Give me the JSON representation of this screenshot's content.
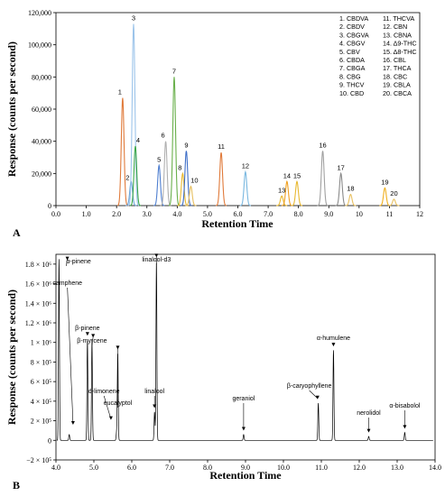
{
  "chart_data": [
    {
      "type": "line",
      "panel_label": "A",
      "xlabel": "Retention Time",
      "ylabel": "Response (counts per second)",
      "xlim": [
        0,
        12
      ],
      "ylim": [
        0,
        120000
      ],
      "x_ticks": [
        "0.0",
        "1.0",
        "2.0",
        "3.0",
        "4.0",
        "5.0",
        "6.0",
        "7.0",
        "8.0",
        "9.0",
        "10",
        "11",
        "12"
      ],
      "y_ticks": [
        "0",
        "20,000",
        "40,000",
        "60,000",
        "80,000",
        "100,000",
        "120,000"
      ],
      "y_tick_values": [
        0,
        20000,
        40000,
        60000,
        80000,
        100000,
        120000
      ],
      "legend": [
        "1.  CBDVA",
        "2.  CBDV",
        "3.  CBGVA",
        "4.  CBGV",
        "5.  CBV",
        "6.  CBDA",
        "7.  CBGA",
        "8.  CBG",
        "9.  THCV",
        "10. CBD",
        "11.  THCVA",
        "12.  CBN",
        "13.  CBNA",
        "14.  Δ9-THC",
        "15.  Δ8-THC",
        "16.  CBL",
        "17.  THCA",
        "18.  CBC",
        "19.  CBLA",
        "20.  CBCA"
      ],
      "peaks": [
        {
          "label": "1",
          "x": 2.2,
          "y": 67000,
          "color": "#e07a3a"
        },
        {
          "label": "2",
          "x": 2.48,
          "y": 15000,
          "color": "#6aa3d8"
        },
        {
          "label": "3",
          "x": 2.56,
          "y": 113000,
          "color": "#9cc4ea"
        },
        {
          "label": "4",
          "x": 2.62,
          "y": 37000,
          "color": "#3ea84a"
        },
        {
          "label": "5",
          "x": 3.4,
          "y": 25000,
          "color": "#4f7fd0"
        },
        {
          "label": "6",
          "x": 3.62,
          "y": 40000,
          "color": "#b0b0b0"
        },
        {
          "label": "7",
          "x": 3.9,
          "y": 80000,
          "color": "#6ab04c"
        },
        {
          "label": "8",
          "x": 4.18,
          "y": 20000,
          "color": "#e8b830"
        },
        {
          "label": "9",
          "x": 4.3,
          "y": 34000,
          "color": "#3f6fc8"
        },
        {
          "label": "10",
          "x": 4.45,
          "y": 12000,
          "color": "#e8c060"
        },
        {
          "label": "11",
          "x": 5.45,
          "y": 33000,
          "color": "#e07a3a"
        },
        {
          "label": "12",
          "x": 6.25,
          "y": 21000,
          "color": "#7ab8e0"
        },
        {
          "label": "13",
          "x": 7.45,
          "y": 6000,
          "color": "#e8b830"
        },
        {
          "label": "14",
          "x": 7.62,
          "y": 15000,
          "color": "#f0a020"
        },
        {
          "label": "15",
          "x": 7.95,
          "y": 15000,
          "color": "#e8b830"
        },
        {
          "label": "16",
          "x": 8.8,
          "y": 34000,
          "color": "#a0a0a0"
        },
        {
          "label": "17",
          "x": 9.4,
          "y": 20000,
          "color": "#8a8a8a"
        },
        {
          "label": "18",
          "x": 9.72,
          "y": 7000,
          "color": "#e8c060"
        },
        {
          "label": "19",
          "x": 10.85,
          "y": 11000,
          "color": "#f0b020"
        },
        {
          "label": "20",
          "x": 11.15,
          "y": 4000,
          "color": "#e8c060"
        }
      ]
    },
    {
      "type": "line",
      "panel_label": "B",
      "xlabel": "Retention Time",
      "ylabel": "Response (counts per second)",
      "xlim": [
        4.0,
        14.0
      ],
      "ylim": [
        -200000,
        1900000
      ],
      "x_ticks": [
        "4.0",
        "5.0",
        "6.0",
        "7.0",
        "8.0",
        "9.0",
        "10.0",
        "11.0",
        "12.0",
        "13.0",
        "14.0"
      ],
      "y_ticks": [
        "−2 × 10⁵",
        "0",
        "2 × 10⁵",
        "4 × 10⁵",
        "6 × 10⁵",
        "8 × 10⁵",
        "1 × 10⁶",
        "1.2 × 10⁶",
        "1.4 × 10⁶",
        "1.6 × 10⁶",
        "1.8 × 10⁶"
      ],
      "y_tick_values": [
        -200000,
        0,
        200000,
        400000,
        600000,
        800000,
        1000000,
        1200000,
        1400000,
        1600000,
        1800000
      ],
      "color": "#000000",
      "peaks": [
        {
          "label": "α-pinene",
          "x": 4.08,
          "y": 1850000
        },
        {
          "label": "camphene",
          "x": 4.35,
          "y": 60000
        },
        {
          "label": "β-pinene",
          "x": 4.83,
          "y": 1030000
        },
        {
          "label": "β-myrcene",
          "x": 4.95,
          "y": 1010000
        },
        {
          "label": "d-limonene",
          "x": 5.6,
          "y": 80000
        },
        {
          "label": "eucalyptol",
          "x": 5.63,
          "y": 890000
        },
        {
          "label": "linalool",
          "x": 6.6,
          "y": 290000
        },
        {
          "label": "linalool-d3",
          "x": 6.65,
          "y": 1830000
        },
        {
          "label": "geraniol",
          "x": 8.95,
          "y": 60000
        },
        {
          "label": "β-caryophyllene",
          "x": 10.92,
          "y": 380000
        },
        {
          "label": "α-humulene",
          "x": 11.32,
          "y": 920000
        },
        {
          "label": "nerolidol",
          "x": 12.25,
          "y": 40000
        },
        {
          "label": "α-bisabolol",
          "x": 13.2,
          "y": 80000
        }
      ]
    }
  ]
}
